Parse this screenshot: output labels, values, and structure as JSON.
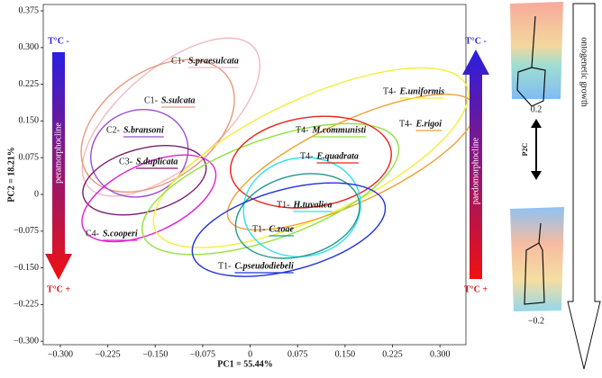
{
  "chart_data": {
    "type": "ellipse",
    "xlabel": "PC1 = 55.44%",
    "ylabel": "PC2 = 18.21%",
    "xlim": [
      -0.327,
      0.341
    ],
    "ylim": [
      -0.307,
      0.388
    ],
    "xticks": [
      {
        "value": -0.3,
        "label": "−0.300"
      },
      {
        "value": -0.225,
        "label": "−0.225"
      },
      {
        "value": -0.15,
        "label": "−0.150"
      },
      {
        "value": -0.075,
        "label": "−0.075"
      },
      0,
      {
        "value": 0.075,
        "label": "0.075"
      },
      {
        "value": 0.15,
        "label": "0.150"
      },
      {
        "value": 0.225,
        "label": "0.225"
      },
      {
        "value": 0.3,
        "label": "0.300"
      }
    ],
    "yticks": [
      {
        "value": 0.375,
        "label": "0.375"
      },
      {
        "value": 0.3,
        "label": "0.300"
      },
      {
        "value": 0.225,
        "label": "0.225"
      },
      {
        "value": 0.15,
        "label": "0.150"
      },
      {
        "value": 0.075,
        "label": "0.075"
      },
      0,
      {
        "value": -0.075,
        "label": "−0.075"
      },
      {
        "value": -0.15,
        "label": "−0.150"
      },
      {
        "value": -0.225,
        "label": "−0.225"
      },
      {
        "value": -0.3,
        "label": "−0.300"
      }
    ],
    "groups": [
      {
        "code": "C1-",
        "name": "S.praesulcata",
        "color": "#f4b8c0",
        "center": [
          -0.125,
          0.158
        ],
        "axes": [
          0.171,
          0.078
        ],
        "angle": -40
      },
      {
        "code": "C1-",
        "name": "S.sulcata",
        "color": "#e8977a",
        "center": [
          -0.146,
          0.14
        ],
        "axes": [
          0.135,
          0.086
        ],
        "angle": -35
      },
      {
        "code": "C2-",
        "name": "S.bransoni",
        "color": "#9b4fd0",
        "center": [
          -0.175,
          0.084
        ],
        "axes": [
          0.078,
          0.068
        ],
        "angle": -20
      },
      {
        "code": "C3-",
        "name": "S.duplicata",
        "color": "#7a1f6e",
        "center": [
          -0.167,
          0.029
        ],
        "axes": [
          0.1,
          0.05
        ],
        "angle": -15
      },
      {
        "code": "C4-",
        "name": "S.cooperi",
        "color": "#e01fd6",
        "center": [
          -0.16,
          -0.008
        ],
        "axes": [
          0.114,
          0.054
        ],
        "angle": -25
      },
      {
        "code": "T4-",
        "name": "E.uniformis",
        "color": "#f2ef3a",
        "center": [
          0.096,
          0.075
        ],
        "axes": [
          0.271,
          0.093
        ],
        "angle": -25
      },
      {
        "code": "T4-",
        "name": "E.rigoi",
        "color": "#f0a030",
        "center": [
          0.16,
          0.066
        ],
        "axes": [
          0.214,
          0.064
        ],
        "angle": -25
      },
      {
        "code": "T4-",
        "name": "M.communisti",
        "color": "#8fe33a",
        "center": [
          0.032,
          0.011
        ],
        "axes": [
          0.214,
          0.078
        ],
        "angle": -20
      },
      {
        "code": "T4-",
        "name": "E.quadrata",
        "color": "#e8231e",
        "center": [
          0.096,
          0.066
        ],
        "axes": [
          0.128,
          0.071
        ],
        "angle": -8
      },
      {
        "code": "T1-",
        "name": "H.tuvalica",
        "color": "#2ee0f0",
        "center": [
          0.082,
          -0.026
        ],
        "axes": [
          0.093,
          0.078
        ],
        "angle": -10
      },
      {
        "code": "T1-",
        "name": "C.zoae",
        "color": "#1f9a8a",
        "center": [
          0.075,
          -0.044
        ],
        "axes": [
          0.1,
          0.064
        ],
        "angle": -15
      },
      {
        "code": "T1-",
        "name": "C.pseudodiebeli",
        "color": "#2030e0",
        "center": [
          0.061,
          -0.072
        ],
        "axes": [
          0.157,
          0.064
        ],
        "angle": -15
      }
    ],
    "left_arrow": {
      "top": "T°C -",
      "bottom": "T°C +",
      "label": "peramorphocline"
    },
    "right_arrow": {
      "top": "T°C -",
      "bottom": "T°C +",
      "label": "paedomorphocline"
    },
    "side_panel": {
      "top_value": 0.2,
      "bottom_value": -0.2,
      "axis": "P2C",
      "growth": "ontogenetic growth"
    }
  }
}
